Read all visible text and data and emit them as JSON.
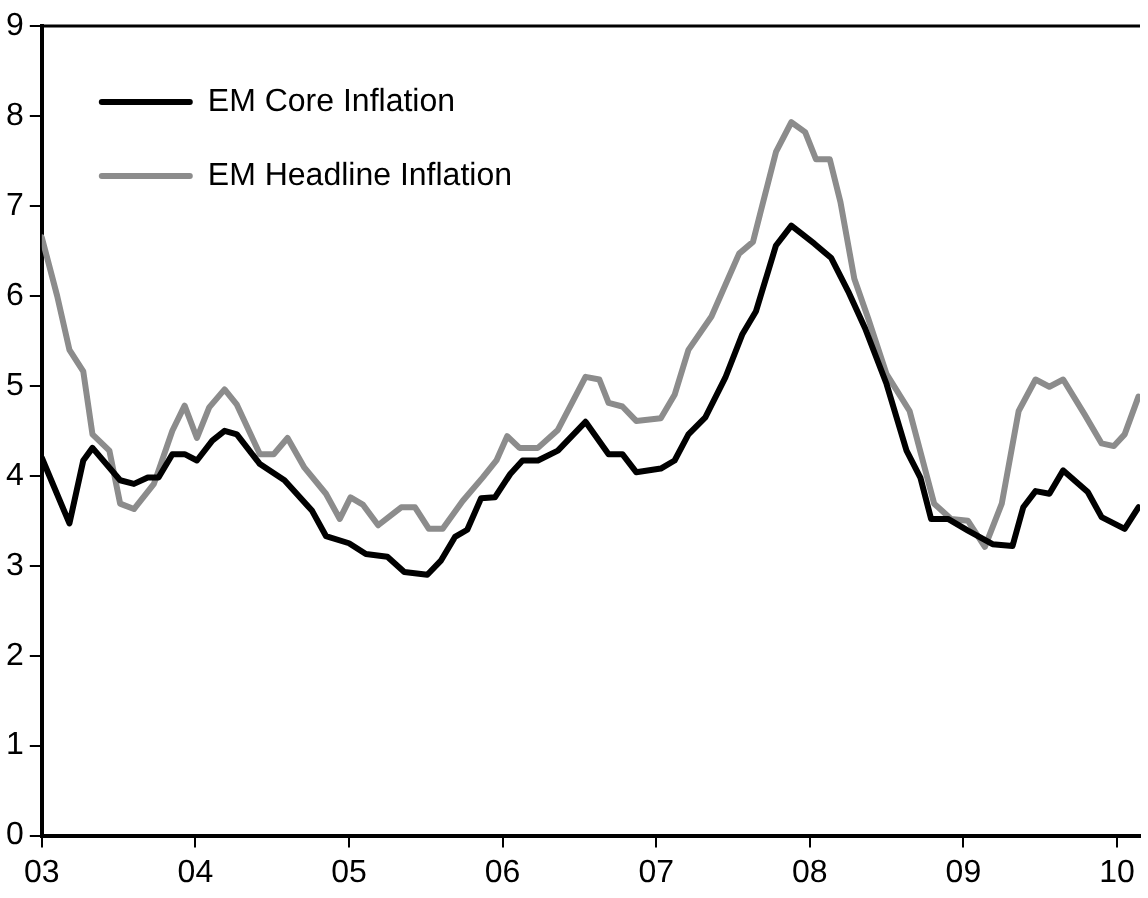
{
  "chart_data": {
    "type": "line",
    "xlim": [
      2003,
      2010.15
    ],
    "ylim": [
      0,
      9
    ],
    "xticks": [
      {
        "value": 2003,
        "label": "03"
      },
      {
        "value": 2004,
        "label": "04"
      },
      {
        "value": 2005,
        "label": "05"
      },
      {
        "value": 2006,
        "label": "06"
      },
      {
        "value": 2007,
        "label": "07"
      },
      {
        "value": 2008,
        "label": "08"
      },
      {
        "value": 2009,
        "label": "09"
      },
      {
        "value": 2010,
        "label": "10"
      }
    ],
    "yticks": [
      0,
      1,
      2,
      3,
      4,
      5,
      6,
      7,
      8,
      9
    ],
    "grid": false,
    "legend": "top left",
    "marker": "none",
    "line_style": "solid",
    "series": [
      {
        "name": "EM Core Inflation",
        "color": "#000000",
        "x": [
          2003.0,
          2003.18,
          2003.27,
          2003.33,
          2003.51,
          2003.6,
          2003.69,
          2003.76,
          2003.85,
          2003.93,
          2004.01,
          2004.11,
          2004.19,
          2004.27,
          2004.42,
          2004.58,
          2004.76,
          2004.85,
          2005.0,
          2005.11,
          2005.25,
          2005.36,
          2005.51,
          2005.6,
          2005.69,
          2005.77,
          2005.86,
          2005.95,
          2006.05,
          2006.13,
          2006.23,
          2006.36,
          2006.54,
          2006.69,
          2006.78,
          2006.87,
          2007.03,
          2007.12,
          2007.21,
          2007.32,
          2007.45,
          2007.56,
          2007.65,
          2007.78,
          2007.88,
          2008.03,
          2008.14,
          2008.25,
          2008.36,
          2008.5,
          2008.63,
          2008.72,
          2008.79,
          2008.9,
          2009.03,
          2009.19,
          2009.32,
          2009.39,
          2009.47,
          2009.56,
          2009.65,
          2009.81,
          2009.9,
          2010.05,
          2010.14
        ],
        "values": [
          4.2,
          3.47,
          4.17,
          4.31,
          3.95,
          3.91,
          3.98,
          3.98,
          4.24,
          4.24,
          4.17,
          4.39,
          4.5,
          4.46,
          4.13,
          3.95,
          3.61,
          3.33,
          3.25,
          3.13,
          3.1,
          2.93,
          2.9,
          3.06,
          3.32,
          3.4,
          3.75,
          3.76,
          4.02,
          4.17,
          4.17,
          4.28,
          4.6,
          4.24,
          4.24,
          4.04,
          4.08,
          4.17,
          4.46,
          4.65,
          5.09,
          5.57,
          5.83,
          6.56,
          6.78,
          6.58,
          6.42,
          6.05,
          5.64,
          5.02,
          4.28,
          3.98,
          3.52,
          3.52,
          3.39,
          3.24,
          3.22,
          3.65,
          3.83,
          3.8,
          4.06,
          3.82,
          3.54,
          3.41,
          3.65
        ]
      },
      {
        "name": "EM Headline Inflation",
        "color": "#8c8c8c",
        "x": [
          2003.0,
          2003.1,
          2003.18,
          2003.27,
          2003.33,
          2003.44,
          2003.51,
          2003.6,
          2003.73,
          2003.85,
          2003.93,
          2004.01,
          2004.09,
          2004.19,
          2004.27,
          2004.42,
          2004.51,
          2004.6,
          2004.71,
          2004.85,
          2004.94,
          2005.01,
          2005.09,
          2005.19,
          2005.34,
          2005.43,
          2005.52,
          2005.61,
          2005.74,
          2005.87,
          2005.96,
          2006.03,
          2006.11,
          2006.23,
          2006.36,
          2006.54,
          2006.63,
          2006.69,
          2006.78,
          2006.87,
          2007.03,
          2007.12,
          2007.21,
          2007.36,
          2007.54,
          2007.63,
          2007.78,
          2007.88,
          2007.97,
          2008.04,
          2008.13,
          2008.2,
          2008.29,
          2008.38,
          2008.5,
          2008.65,
          2008.81,
          2008.92,
          2009.03,
          2009.14,
          2009.25,
          2009.36,
          2009.47,
          2009.56,
          2009.65,
          2009.79,
          2009.9,
          2009.98,
          2010.05,
          2010.14
        ],
        "values": [
          6.65,
          6.0,
          5.4,
          5.16,
          4.46,
          4.28,
          3.69,
          3.63,
          3.91,
          4.5,
          4.78,
          4.42,
          4.76,
          4.96,
          4.79,
          4.24,
          4.24,
          4.42,
          4.09,
          3.8,
          3.52,
          3.76,
          3.68,
          3.45,
          3.65,
          3.65,
          3.41,
          3.41,
          3.72,
          3.98,
          4.17,
          4.44,
          4.31,
          4.31,
          4.51,
          5.1,
          5.07,
          4.81,
          4.77,
          4.61,
          4.64,
          4.9,
          5.4,
          5.77,
          6.47,
          6.6,
          7.6,
          7.93,
          7.82,
          7.52,
          7.52,
          7.04,
          6.19,
          5.75,
          5.13,
          4.72,
          3.69,
          3.52,
          3.5,
          3.21,
          3.69,
          4.72,
          5.07,
          4.99,
          5.07,
          4.68,
          4.36,
          4.33,
          4.46,
          4.88
        ]
      }
    ]
  }
}
